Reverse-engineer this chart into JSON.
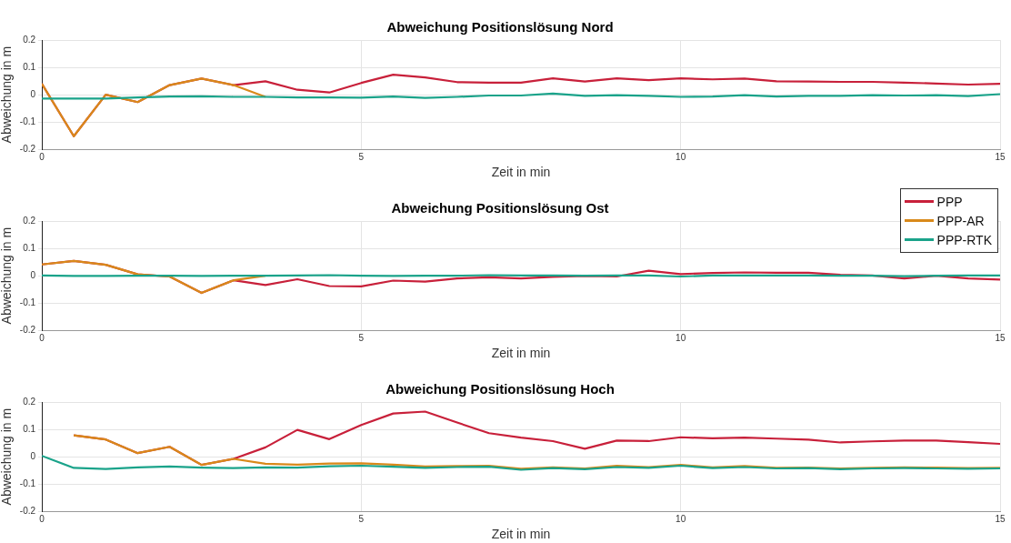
{
  "chart_data": [
    {
      "type": "line",
      "title": "Abweichung Positionslösung Nord",
      "xlabel": "Zeit in min",
      "ylabel": "Abweichung in m",
      "x": [
        0,
        0.5,
        1,
        1.5,
        2,
        2.5,
        3,
        3.5,
        4,
        4.5,
        5,
        5.5,
        6,
        6.5,
        7,
        7.5,
        8,
        8.5,
        9,
        9.5,
        10,
        10.5,
        11,
        11.5,
        12,
        12.5,
        13,
        13.5,
        14,
        14.5,
        15
      ],
      "xlim": [
        0,
        15
      ],
      "ylim": [
        -0.2,
        0.2
      ],
      "xticks": [
        0,
        5,
        10,
        15
      ],
      "yticks": [
        -0.2,
        -0.1,
        0,
        0.1,
        0.2
      ],
      "grid": true,
      "marker": "none",
      "line_style": "solid",
      "series": [
        {
          "color": "#c8203a",
          "values": [
            0.04,
            -0.152,
            0,
            -0.027,
            0.035,
            0.059,
            0.035,
            0.049,
            0.018,
            0.008,
            0.043,
            0.073,
            0.063,
            0.046,
            0.044,
            0.044,
            0.06,
            0.048,
            0.06,
            0.053,
            0.06,
            0.056,
            0.059,
            0.049,
            0.048,
            0.047,
            0.047,
            0.044,
            0.041,
            0.037,
            0.04
          ]
        },
        {
          "color": "#d9891a",
          "values": [
            0.04,
            -0.152,
            0,
            -0.027,
            0.035,
            0.059,
            0.035,
            -0.008,
            null,
            null,
            null,
            null,
            null,
            null,
            null,
            null,
            null,
            null,
            null,
            null,
            null,
            null,
            null,
            null,
            null,
            null,
            null,
            null,
            null,
            null,
            null
          ]
        },
        {
          "color": "#1aa38a",
          "values": [
            -0.014,
            -0.014,
            -0.014,
            -0.01,
            -0.007,
            -0.006,
            -0.008,
            -0.008,
            -0.01,
            -0.01,
            -0.011,
            -0.007,
            -0.012,
            -0.008,
            -0.003,
            -0.003,
            0.004,
            -0.004,
            -0.002,
            -0.004,
            -0.008,
            -0.007,
            -0.002,
            -0.007,
            -0.004,
            -0.004,
            -0.002,
            -0.003,
            -0.002,
            -0.005,
            0.002
          ]
        }
      ]
    },
    {
      "type": "line",
      "title": "Abweichung Positionslösung Ost",
      "xlabel": "Zeit in min",
      "ylabel": "Abweichung in m",
      "x": [
        0,
        0.5,
        1,
        1.5,
        2,
        2.5,
        3,
        3.5,
        4,
        4.5,
        5,
        5.5,
        6,
        6.5,
        7,
        7.5,
        8,
        8.5,
        9,
        9.5,
        10,
        10.5,
        11,
        11.5,
        12,
        12.5,
        13,
        13.5,
        14,
        14.5,
        15
      ],
      "xlim": [
        0,
        15
      ],
      "ylim": [
        -0.2,
        0.2
      ],
      "xticks": [
        0,
        5,
        10,
        15
      ],
      "yticks": [
        -0.2,
        -0.1,
        0,
        0.1,
        0.2
      ],
      "grid": true,
      "marker": "none",
      "line_style": "solid",
      "legend": "top right",
      "series": [
        {
          "name": "PPP",
          "color": "#c8203a",
          "values": [
            0.041,
            0.054,
            0.04,
            0.005,
            -0.003,
            -0.063,
            -0.017,
            -0.034,
            -0.013,
            -0.038,
            -0.039,
            -0.018,
            -0.022,
            -0.01,
            -0.006,
            -0.01,
            -0.004,
            -0.001,
            -0.003,
            0.018,
            0.006,
            0.01,
            0.012,
            0.011,
            0.011,
            0.003,
            0.001,
            -0.01,
            0,
            -0.01,
            -0.014
          ]
        },
        {
          "name": "PPP-AR",
          "color": "#d9891a",
          "values": [
            0.041,
            0.054,
            0.04,
            0.005,
            -0.003,
            -0.063,
            -0.017,
            0,
            null,
            null,
            null,
            null,
            null,
            null,
            null,
            null,
            null,
            null,
            null,
            null,
            null,
            null,
            null,
            null,
            null,
            null,
            null,
            null,
            null,
            null,
            null
          ]
        },
        {
          "name": "PPP-RTK",
          "color": "#1aa38a",
          "values": [
            0.001,
            -0.001,
            -0.001,
            0,
            0,
            -0.001,
            0,
            0,
            0.001,
            0.002,
            0,
            -0.001,
            0,
            0,
            0.002,
            0.001,
            0.001,
            0,
            0.001,
            0.001,
            -0.003,
            0.001,
            0.001,
            0.001,
            0.001,
            0,
            0,
            -0.002,
            0,
            0.001,
            0.001
          ]
        }
      ]
    },
    {
      "type": "line",
      "title": "Abweichung Positionslösung Hoch",
      "xlabel": "Zeit in min",
      "ylabel": "Abweichung in m",
      "x": [
        0,
        0.5,
        1,
        1.5,
        2,
        2.5,
        3,
        3.5,
        4,
        4.5,
        5,
        5.5,
        6,
        6.5,
        7,
        7.5,
        8,
        8.5,
        9,
        9.5,
        10,
        10.5,
        11,
        11.5,
        12,
        12.5,
        13,
        13.5,
        14,
        14.5,
        15
      ],
      "xlim": [
        0,
        15
      ],
      "ylim": [
        -0.2,
        0.2
      ],
      "xticks": [
        0,
        5,
        10,
        15
      ],
      "yticks": [
        -0.2,
        -0.1,
        0,
        0.1,
        0.2
      ],
      "grid": true,
      "marker": "none",
      "line_style": "solid",
      "series": [
        {
          "color": "#c8203a",
          "values": [
            null,
            0.078,
            0.063,
            0.013,
            0.036,
            -0.03,
            -0.008,
            0.034,
            0.098,
            0.064,
            0.116,
            0.158,
            0.165,
            0.125,
            0.086,
            0.07,
            0.057,
            0.029,
            0.059,
            0.057,
            0.071,
            0.067,
            0.07,
            0.066,
            0.062,
            0.052,
            0.056,
            0.059,
            0.059,
            0.053,
            0.047
          ]
        },
        {
          "color": "#d9891a",
          "values": [
            null,
            0.078,
            0.063,
            0.013,
            0.036,
            -0.03,
            -0.008,
            -0.026,
            -0.029,
            -0.025,
            -0.024,
            -0.029,
            -0.036,
            -0.034,
            -0.033,
            -0.044,
            -0.039,
            -0.043,
            -0.033,
            -0.038,
            -0.03,
            -0.039,
            -0.034,
            -0.041,
            -0.04,
            -0.043,
            -0.041,
            -0.039,
            -0.04,
            -0.042,
            -0.041
          ]
        },
        {
          "color": "#1aa38a",
          "values": [
            0.003,
            -0.041,
            -0.045,
            -0.039,
            -0.036,
            -0.04,
            -0.042,
            -0.039,
            -0.04,
            -0.035,
            -0.033,
            -0.037,
            -0.041,
            -0.038,
            -0.037,
            -0.048,
            -0.042,
            -0.046,
            -0.038,
            -0.041,
            -0.033,
            -0.042,
            -0.038,
            -0.043,
            -0.042,
            -0.046,
            -0.043,
            -0.042,
            -0.043,
            -0.044,
            -0.043
          ]
        }
      ]
    }
  ]
}
